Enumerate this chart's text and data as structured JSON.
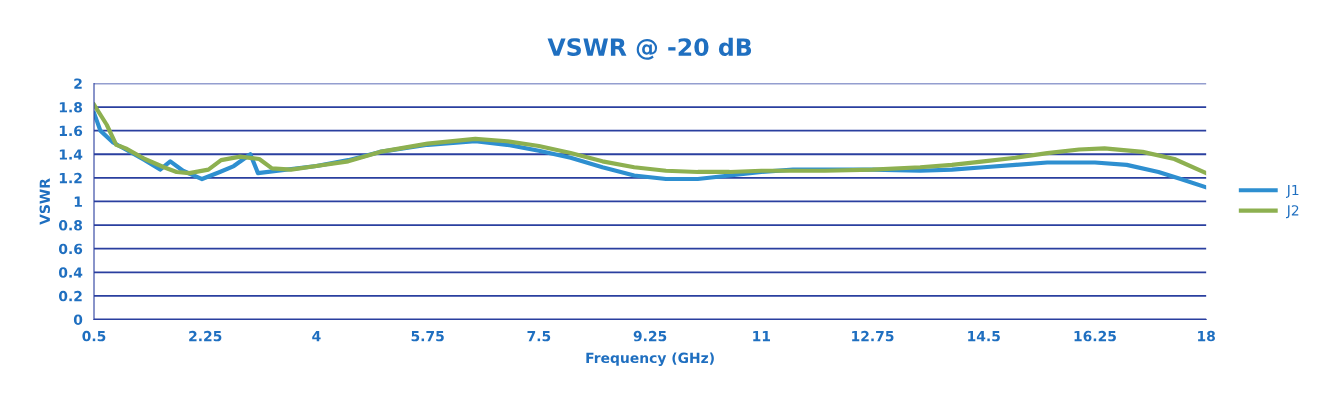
{
  "chart_data": {
    "type": "line",
    "title": "VSWR @ -20 dB",
    "xlabel": "Frequency (GHz)",
    "ylabel": "VSWR",
    "xlim": [
      0.5,
      18
    ],
    "xticks": [
      0.5,
      2.25,
      4,
      5.75,
      7.5,
      9.25,
      11,
      12.75,
      14.5,
      16.25,
      18
    ],
    "ylim": [
      0,
      2
    ],
    "yticks": [
      0,
      0.2,
      0.4,
      0.6,
      0.8,
      1,
      1.2,
      1.4,
      1.6,
      1.8,
      2
    ],
    "grid": "y",
    "legend": "right",
    "marker": "none",
    "line_style": "solid",
    "series": [
      {
        "name": "J1",
        "color": "#2e8fd0",
        "x": [
          0.5,
          0.6,
          0.8,
          1.0,
          1.3,
          1.54,
          1.7,
          1.9,
          2.2,
          2.48,
          2.7,
          2.96,
          3.08,
          4,
          4.5,
          5,
          5.75,
          6.5,
          7,
          7.5,
          8,
          8.5,
          9,
          9.5,
          10,
          10.5,
          11,
          11.5,
          12,
          12.75,
          13.5,
          14,
          14.5,
          15,
          15.5,
          16.25,
          16.75,
          17.25,
          17.6,
          18
        ],
        "values": [
          1.75,
          1.6,
          1.5,
          1.44,
          1.35,
          1.27,
          1.34,
          1.26,
          1.19,
          1.25,
          1.3,
          1.4,
          1.24,
          1.3,
          1.35,
          1.42,
          1.48,
          1.51,
          1.48,
          1.43,
          1.37,
          1.29,
          1.22,
          1.19,
          1.19,
          1.22,
          1.25,
          1.27,
          1.27,
          1.27,
          1.26,
          1.27,
          1.29,
          1.31,
          1.33,
          1.33,
          1.31,
          1.25,
          1.19,
          1.12
        ]
      },
      {
        "name": "J2",
        "color": "#8db050",
        "x": [
          0.5,
          0.7,
          0.85,
          1.0,
          1.3,
          1.6,
          1.8,
          2.0,
          2.3,
          2.5,
          2.8,
          3.1,
          3.3,
          3.6,
          4,
          4.5,
          5,
          5.75,
          6.5,
          7,
          7.5,
          8,
          8.5,
          9,
          9.5,
          10,
          10.5,
          11,
          11.5,
          12,
          12.75,
          13.5,
          14,
          14.5,
          15,
          15.5,
          16,
          16.4,
          17,
          17.5,
          18
        ],
        "values": [
          1.82,
          1.65,
          1.48,
          1.45,
          1.36,
          1.29,
          1.25,
          1.24,
          1.27,
          1.35,
          1.38,
          1.36,
          1.28,
          1.27,
          1.3,
          1.34,
          1.42,
          1.49,
          1.53,
          1.51,
          1.47,
          1.41,
          1.34,
          1.29,
          1.26,
          1.25,
          1.25,
          1.26,
          1.26,
          1.26,
          1.27,
          1.29,
          1.31,
          1.34,
          1.37,
          1.41,
          1.44,
          1.45,
          1.42,
          1.36,
          1.24
        ]
      }
    ]
  }
}
